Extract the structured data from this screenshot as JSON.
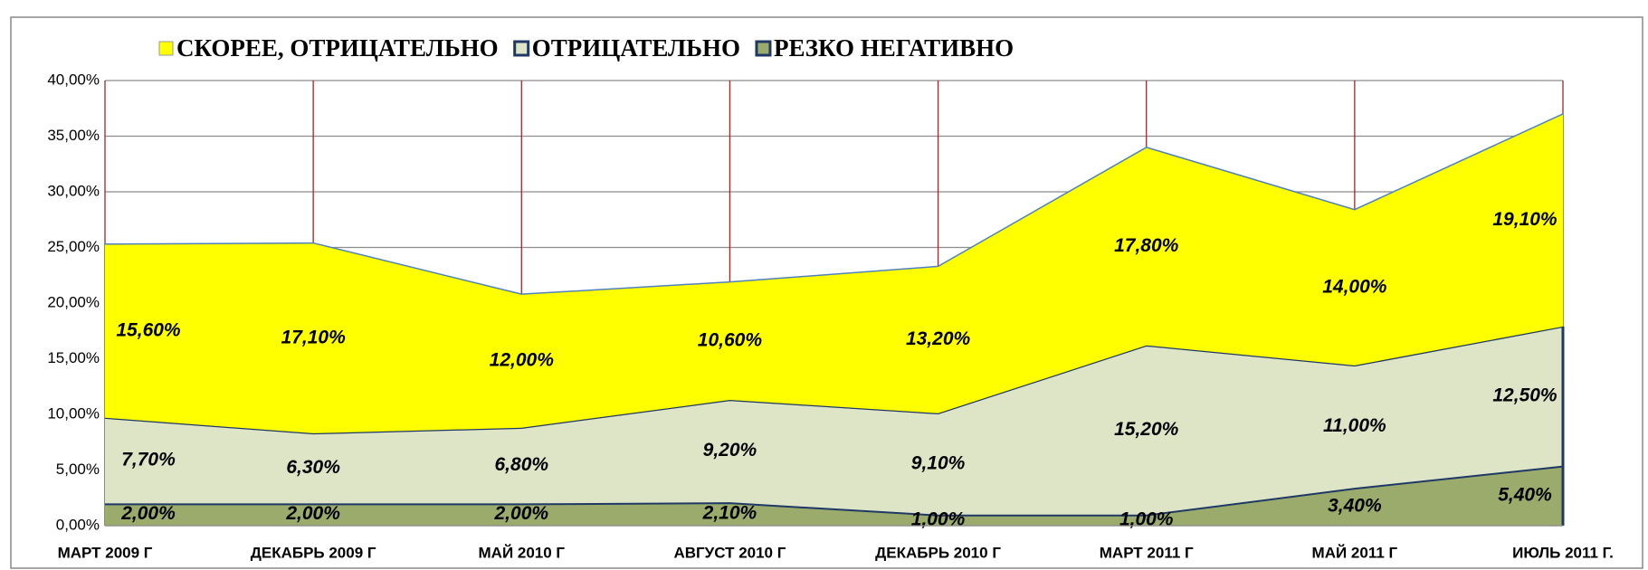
{
  "chart_data": {
    "type": "stacked_area",
    "categories": [
      "МАРТ 2009 Г",
      "ДЕКАБРЬ 2009 Г",
      "МАЙ 2010 Г",
      "АВГУСТ 2010 Г",
      "ДЕКАБРЬ 2010 Г",
      "МАРТ 2011 Г",
      "МАЙ 2011 Г",
      "ИЮЛЬ 2011 Г."
    ],
    "series": [
      {
        "name": "СКОРЕЕ, ОТРИЦАТЕЛЬНО",
        "color": "#ffff00",
        "values": [
          15.6,
          17.1,
          12.0,
          10.6,
          13.2,
          17.8,
          14.0,
          19.1
        ],
        "value_labels": [
          "15,60%",
          "17,10%",
          "12,00%",
          "10,60%",
          "13,20%",
          "17,80%",
          "14,00%",
          "19,10%"
        ]
      },
      {
        "name": "ОТРИЦАТЕЛЬНО",
        "color": "#dde5c6",
        "values": [
          7.7,
          6.3,
          6.8,
          9.2,
          9.1,
          15.2,
          11.0,
          12.5
        ],
        "value_labels": [
          "7,70%",
          "6,30%",
          "6,80%",
          "9,20%",
          "9,10%",
          "15,20%",
          "11,00%",
          "12,50%"
        ]
      },
      {
        "name": "РЕЗКО НЕГАТИВНО",
        "color": "#9aab6c",
        "values": [
          2.0,
          2.0,
          2.0,
          2.1,
          1.0,
          1.0,
          3.4,
          5.4
        ],
        "value_labels": [
          "2,00%",
          "2,00%",
          "2,00%",
          "2,10%",
          "1,00%",
          "1,00%",
          "3,40%",
          "5,40%"
        ]
      }
    ],
    "ylim": [
      0,
      40
    ],
    "yticks": [
      {
        "value": 0,
        "label": "0,00%"
      },
      {
        "value": 5,
        "label": "5,00%"
      },
      {
        "value": 10,
        "label": "10,00%"
      },
      {
        "value": 15,
        "label": "15,00%"
      },
      {
        "value": 20,
        "label": "20,00%"
      },
      {
        "value": 25,
        "label": "25,00%"
      },
      {
        "value": 30,
        "label": "30,00%"
      },
      {
        "value": 35,
        "label": "35,00%"
      },
      {
        "value": 40,
        "label": "40,00%"
      }
    ],
    "grid": true,
    "legend": "top"
  }
}
